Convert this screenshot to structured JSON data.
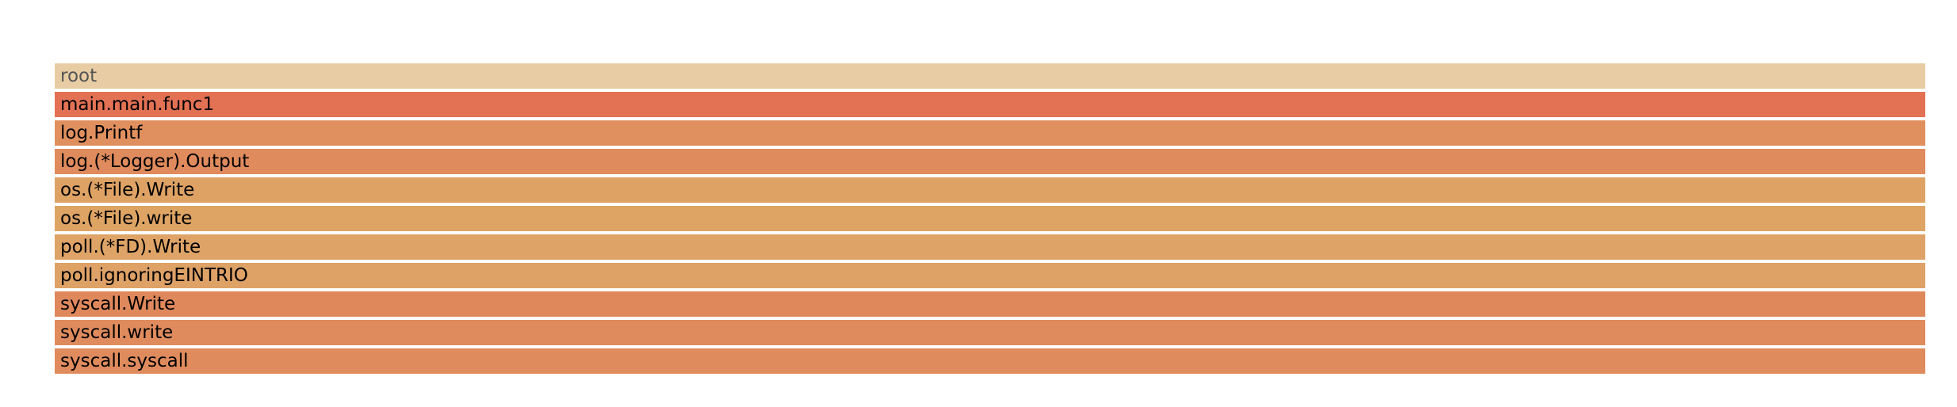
{
  "flamegraph": {
    "frames": [
      {
        "label": "root",
        "color": "#e8cda4"
      },
      {
        "label": "main.main.func1",
        "color": "#e37255"
      },
      {
        "label": "log.Printf",
        "color": "#e0905e"
      },
      {
        "label": "log.(*Logger).Output",
        "color": "#e08b5d"
      },
      {
        "label": "os.(*File).Write",
        "color": "#dea265"
      },
      {
        "label": "os.(*File).write",
        "color": "#dea464"
      },
      {
        "label": "poll.(*FD).Write",
        "color": "#dea366"
      },
      {
        "label": "poll.ignoringEINTRIO",
        "color": "#dea166"
      },
      {
        "label": "syscall.Write",
        "color": "#df885c"
      },
      {
        "label": "syscall.write",
        "color": "#df8b5d"
      },
      {
        "label": "syscall.syscall",
        "color": "#df8b5d"
      }
    ]
  }
}
